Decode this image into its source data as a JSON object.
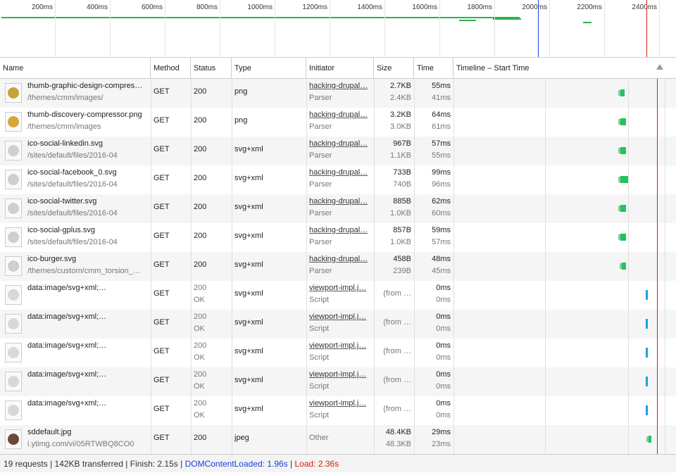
{
  "overview": {
    "ticks": [
      "200ms",
      "400ms",
      "600ms",
      "800ms",
      "1000ms",
      "1200ms",
      "1400ms",
      "1600ms",
      "1800ms",
      "2000ms",
      "2200ms",
      "2400ms"
    ]
  },
  "columns": {
    "name": "Name",
    "method": "Method",
    "status": "Status",
    "type": "Type",
    "initiator": "Initiator",
    "size": "Size",
    "time": "Time",
    "timeline": "Timeline – Start Time",
    "timeline_scale": "2.00s"
  },
  "rows": [
    {
      "icon": "shield-thumb-icon",
      "icon_color": "#c9a23a",
      "name": "thumb-graphic-design-compres…",
      "path": "/themes/cmm/images/",
      "method": "GET",
      "status": "200",
      "status2": "",
      "type": "png",
      "initiator": "hacking-drupal…",
      "initiator2": "Parser",
      "size": "2.7KB",
      "size2": "2.4KB",
      "time": "55ms",
      "time2": "41ms"
    },
    {
      "icon": "discovery-thumb-icon",
      "icon_color": "#d9a43c",
      "name": "thumb-discovery-compressor.png",
      "path": "/themes/cmm/images",
      "method": "GET",
      "status": "200",
      "status2": "",
      "type": "png",
      "initiator": "hacking-drupal…",
      "initiator2": "Parser",
      "size": "3.2KB",
      "size2": "3.0KB",
      "time": "64ms",
      "time2": "61ms"
    },
    {
      "icon": "linkedin-icon",
      "icon_color": "#cfcfcf",
      "name": "ico-social-linkedin.svg",
      "path": "/sites/default/files/2016-04",
      "method": "GET",
      "status": "200",
      "status2": "",
      "type": "svg+xml",
      "initiator": "hacking-drupal…",
      "initiator2": "Parser",
      "size": "967B",
      "size2": "1.1KB",
      "time": "57ms",
      "time2": "55ms"
    },
    {
      "icon": "facebook-icon",
      "icon_color": "#cfcfcf",
      "name": "ico-social-facebook_0.svg",
      "path": "/sites/default/files/2016-04",
      "method": "GET",
      "status": "200",
      "status2": "",
      "type": "svg+xml",
      "initiator": "hacking-drupal…",
      "initiator2": "Parser",
      "size": "733B",
      "size2": "740B",
      "time": "99ms",
      "time2": "96ms"
    },
    {
      "icon": "twitter-icon",
      "icon_color": "#cfcfcf",
      "name": "ico-social-twitter.svg",
      "path": "/sites/default/files/2016-04",
      "method": "GET",
      "status": "200",
      "status2": "",
      "type": "svg+xml",
      "initiator": "hacking-drupal…",
      "initiator2": "Parser",
      "size": "885B",
      "size2": "1.0KB",
      "time": "62ms",
      "time2": "60ms"
    },
    {
      "icon": "gplus-icon",
      "icon_color": "#cfcfcf",
      "name": "ico-social-gplus.svg",
      "path": "/sites/default/files/2016-04",
      "method": "GET",
      "status": "200",
      "status2": "",
      "type": "svg+xml",
      "initiator": "hacking-drupal…",
      "initiator2": "Parser",
      "size": "857B",
      "size2": "1.0KB",
      "time": "59ms",
      "time2": "57ms"
    },
    {
      "icon": "burger-icon",
      "icon_color": "#cfcfcf",
      "name": "ico-burger.svg",
      "path": "/themes/custom/cmm_torsion_…",
      "method": "GET",
      "status": "200",
      "status2": "",
      "type": "svg+xml",
      "initiator": "hacking-drupal…",
      "initiator2": "Parser",
      "size": "458B",
      "size2": "239B",
      "time": "48ms",
      "time2": "45ms"
    },
    {
      "icon": "mail-icon",
      "icon_color": "#d8d8d8",
      "name": "data:image/svg+xml;…",
      "path": "",
      "method": "GET",
      "status": "200",
      "status2": "OK",
      "type": "svg+xml",
      "initiator": "viewport-impl.j…",
      "initiator2": "Script",
      "size": "(from …",
      "size2": "",
      "time": "0ms",
      "time2": "0ms"
    },
    {
      "icon": "linkedin-icon",
      "icon_color": "#d8d8d8",
      "name": "data:image/svg+xml;…",
      "path": "",
      "method": "GET",
      "status": "200",
      "status2": "OK",
      "type": "svg+xml",
      "initiator": "viewport-impl.j…",
      "initiator2": "Script",
      "size": "(from …",
      "size2": "",
      "time": "0ms",
      "time2": "0ms"
    },
    {
      "icon": "twitter-icon",
      "icon_color": "#d8d8d8",
      "name": "data:image/svg+xml;…",
      "path": "",
      "method": "GET",
      "status": "200",
      "status2": "OK",
      "type": "svg+xml",
      "initiator": "viewport-impl.j…",
      "initiator2": "Script",
      "size": "(from …",
      "size2": "",
      "time": "0ms",
      "time2": "0ms"
    },
    {
      "icon": "gplus-icon",
      "icon_color": "#d8d8d8",
      "name": "data:image/svg+xml;…",
      "path": "",
      "method": "GET",
      "status": "200",
      "status2": "OK",
      "type": "svg+xml",
      "initiator": "viewport-impl.j…",
      "initiator2": "Script",
      "size": "(from …",
      "size2": "",
      "time": "0ms",
      "time2": "0ms"
    },
    {
      "icon": "facebook-icon",
      "icon_color": "#d8d8d8",
      "name": "data:image/svg+xml;…",
      "path": "",
      "method": "GET",
      "status": "200",
      "status2": "OK",
      "type": "svg+xml",
      "initiator": "viewport-impl.j…",
      "initiator2": "Script",
      "size": "(from …",
      "size2": "",
      "time": "0ms",
      "time2": "0ms"
    },
    {
      "icon": "video-thumb-icon",
      "icon_color": "#6b4a3a",
      "name": "sddefault.jpg",
      "path": "i.ytimg.com/vi/05RTWBQ8CO0",
      "method": "GET",
      "status": "200",
      "status2": "",
      "type": "jpeg",
      "initiator": "Other",
      "initiator2": "",
      "size": "48.4KB",
      "size2": "48.3KB",
      "time": "29ms",
      "time2": "23ms"
    }
  ],
  "status_bar": {
    "requests": "19 requests",
    "transferred": "142KB transferred",
    "finish": "Finish: 2.15s",
    "dcl": "DOMContentLoaded: 1.96s",
    "load": "Load: 2.36s",
    "sep": "|"
  },
  "colors": {
    "receiving": "#1fc55f",
    "cached": "#1e9fe4",
    "dcl_line": "#1a3fe0",
    "load_line": "#d4200b"
  }
}
